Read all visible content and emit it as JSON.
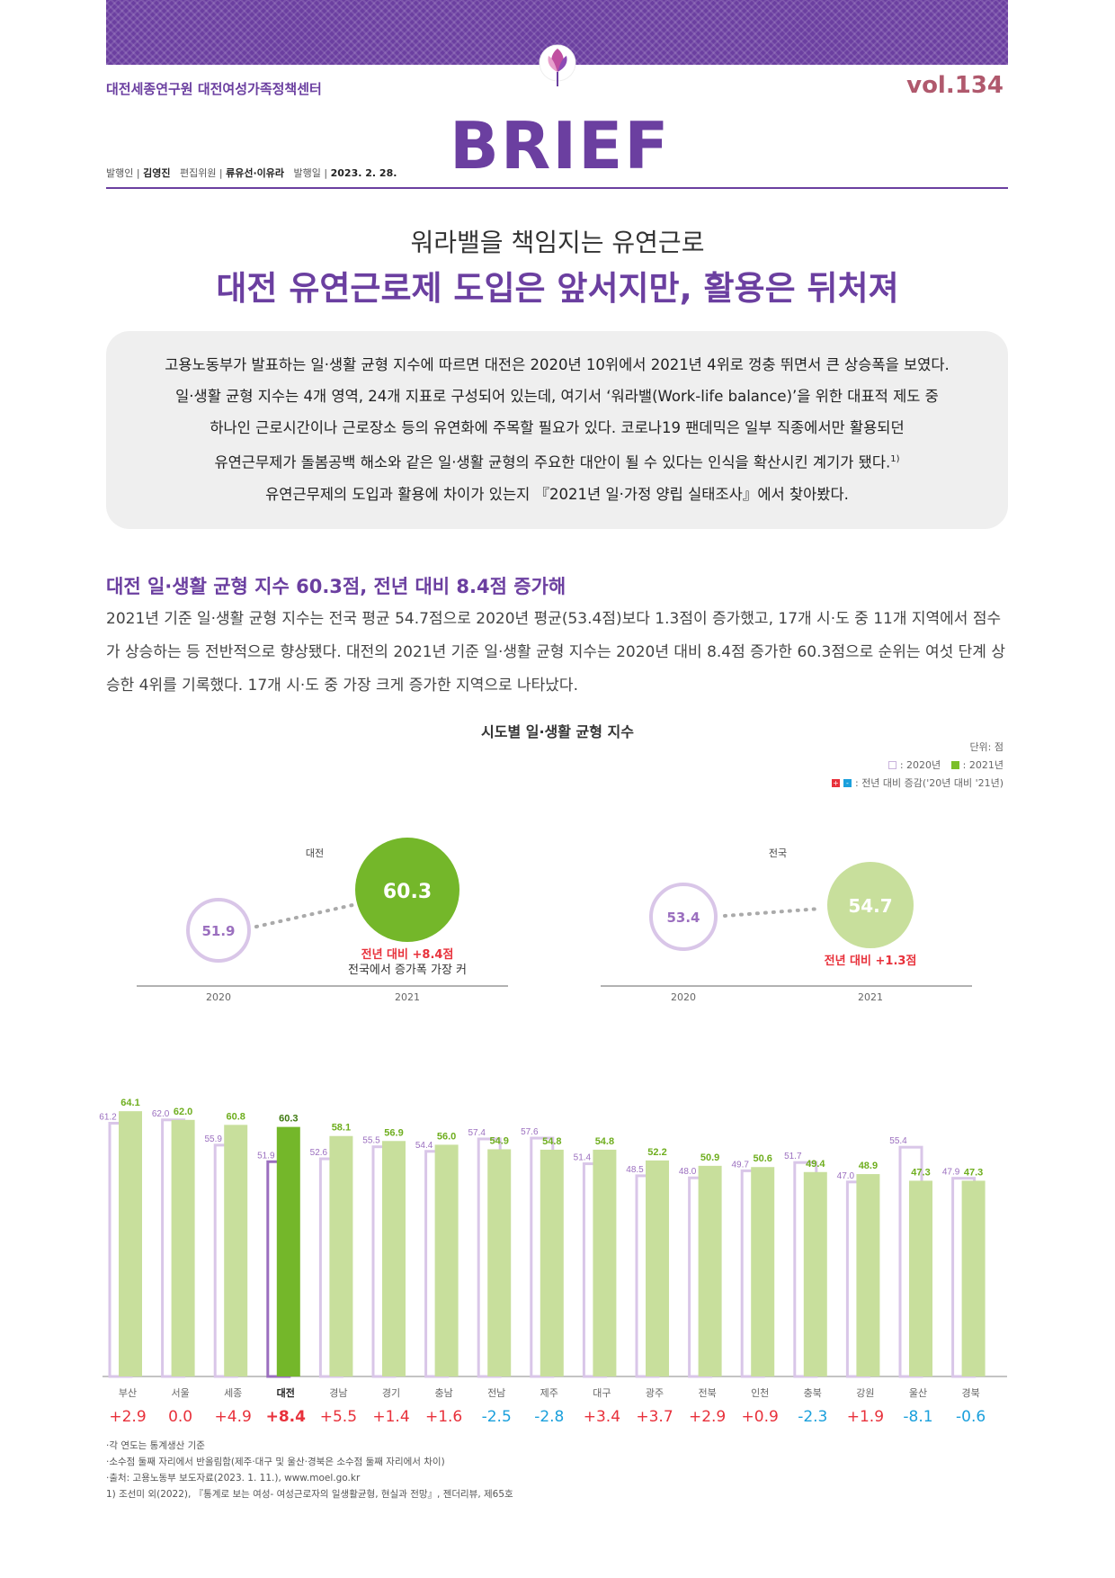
{
  "header": {
    "org": "대전세종연구원 대전여성가족정책센터",
    "vol": "vol.134",
    "logo": "BRIEF",
    "publisher_label": "발행인",
    "publisher": "김영진",
    "editor_label": "편집위원",
    "editors": "류유선·이유라",
    "date_label": "발행일",
    "date": "2023. 2. 28."
  },
  "headline": {
    "subtitle": "워라밸을 책임지는 유연근로",
    "title": "대전 유연근로제 도입은 앞서지만, 활용은 뒤처져"
  },
  "summary": {
    "line1": "고용노동부가 발표하는 일·생활 균형 지수에 따르면 대전은 2020년 10위에서 2021년 4위로 껑충 뛰면서 큰 상승폭을 보였다.",
    "line2": "일·생활 균형 지수는 4개 영역, 24개 지표로 구성되어 있는데, 여기서 ‘워라밸(Work-life balance)’을 위한 대표적 제도 중",
    "line3": "하나인 근로시간이나 근로장소 등의 유연화에 주목할 필요가 있다. 코로나19 팬데믹은 일부 직종에서만 활용되던",
    "line4": "유연근무제가 돌봄공백 해소와 같은 일·생활 균형의 주요한 대안이 될 수 있다는 인식을 확산시킨 계기가 됐다.",
    "line4_sup": "1)",
    "line5": "유연근무제의 도입과 활용에 차이가 있는지 『2021년 일·가정 양립 실태조사』에서 찾아봤다."
  },
  "section": {
    "heading": "대전 일·생활 균형 지수 60.3점, 전년 대비 8.4점 증가해",
    "body": "2021년 기준 일·생활 균형 지수는 전국 평균 54.7점으로 2020년 평균(53.4점)보다 1.3점이 증가했고, 17개 시·도 중 11개 지역에서 점수가 상승하는 등 전반적으로 향상됐다. 대전의 2021년 기준 일·생활 균형 지수는 2020년 대비 8.4점 증가한 60.3점으로 순위는 여섯 단계 상승한 4위를 기록했다. 17개 시·도 중 가장 크게 증가한 지역으로 나타났다."
  },
  "chart_data": {
    "type": "bar",
    "title": "시도별 일·생활 균형 지수",
    "unit": "단위: 점",
    "legend": {
      "y2020": "2020년",
      "y2021": "2021년",
      "change": "전년 대비 증감('20년 대비 '21년)",
      "plus": "+",
      "minus": "-"
    },
    "highlight": {
      "daejeon": {
        "label": "대전",
        "v2020": "51.9",
        "v2021": "60.3",
        "note1": "전년 대비 +8.4점",
        "note2": "전국에서 증가폭 가장 커"
      },
      "national": {
        "label": "전국",
        "v2020": "53.4",
        "v2021": "54.7",
        "note1": "전년 대비 +1.3점"
      },
      "year2020": "2020",
      "year2021": "2021"
    },
    "categories": [
      "부산",
      "서울",
      "세종",
      "대전",
      "경남",
      "경기",
      "충남",
      "전남",
      "제주",
      "대구",
      "광주",
      "전북",
      "인천",
      "충북",
      "강원",
      "울산",
      "경북"
    ],
    "series": [
      {
        "name": "2020년",
        "values": [
          61.2,
          62.0,
          55.9,
          51.9,
          52.6,
          55.5,
          54.4,
          57.4,
          57.6,
          51.4,
          48.5,
          48.0,
          49.7,
          51.7,
          47.0,
          55.4,
          47.9
        ]
      },
      {
        "name": "2021년",
        "values": [
          64.1,
          62.0,
          60.8,
          60.3,
          58.1,
          56.9,
          56.0,
          54.9,
          54.8,
          54.8,
          52.2,
          50.9,
          50.6,
          49.4,
          48.9,
          47.3,
          47.3
        ]
      }
    ],
    "changes": [
      "+2.9",
      "0.0",
      "+4.9",
      "+8.4",
      "+5.5",
      "+1.4",
      "+1.6",
      "-2.5",
      "-2.8",
      "+3.4",
      "+3.7",
      "+2.9",
      "+0.9",
      "-2.3",
      "+1.9",
      "-8.1",
      "-0.6"
    ],
    "highlight_index": 3,
    "colors": {
      "bar2020": "#d9c6e8",
      "bar2021": "#c8df9c",
      "highlight2021": "#74b72a",
      "highlight2020": "#9b6fbf",
      "up": "#e8313b",
      "down": "#1ba0dc",
      "label2020": "#9b6fbf",
      "label2021": "#6fae1f"
    }
  },
  "notes": {
    "n1": "·각 연도는 통계생산 기준",
    "n2": "·소수점 둘째 자리에서 반올림함(제주·대구 및 울산·경북은 소수점 둘째 자리에서 차이)",
    "n3": "·출처: 고용노동부 보도자료(2023. 1. 11.), www.moel.go.kr",
    "n4": "1) 조선미 외(2022), 『통계로 보는 여성- 여성근로자의 일생활균형, 현실과 전망』, 젠더리뷰, 제65호"
  }
}
